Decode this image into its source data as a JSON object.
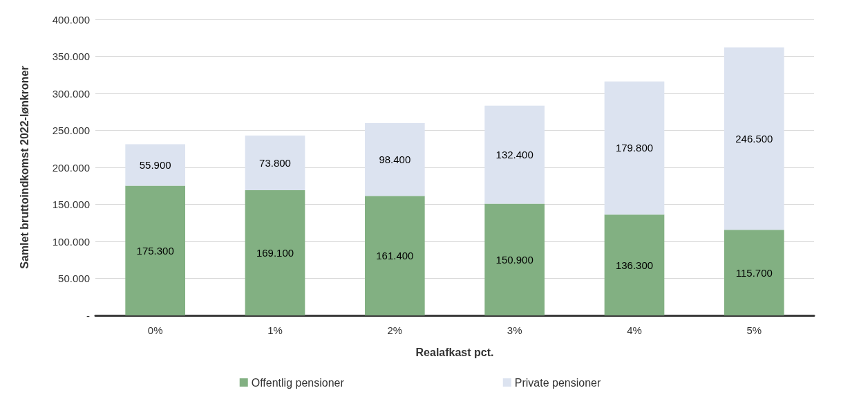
{
  "chart_data": {
    "type": "bar",
    "stacked": true,
    "xlabel": "Realafkast pct.",
    "ylabel": "Samlet bruttoindkomst 2022-lønkroner",
    "categories": [
      "0%",
      "1%",
      "2%",
      "3%",
      "4%",
      "5%"
    ],
    "series": [
      {
        "name": "Offentlig pensioner",
        "color": "#82b082",
        "values": [
          175300,
          169100,
          161400,
          150900,
          136300,
          115700
        ],
        "value_labels": [
          "175.300",
          "169.100",
          "161.400",
          "150.900",
          "136.300",
          "115.700"
        ]
      },
      {
        "name": "Private pensioner",
        "color": "#dce3f0",
        "values": [
          55900,
          73800,
          98400,
          132400,
          179800,
          246500
        ],
        "value_labels": [
          "55.900",
          "73.800",
          "98.400",
          "132.400",
          "179.800",
          "246.500"
        ]
      }
    ],
    "ylim": [
      0,
      400000
    ],
    "yticks": [
      {
        "value": 0,
        "label": "-"
      },
      {
        "value": 50000,
        "label": "50.000"
      },
      {
        "value": 100000,
        "label": "100.000"
      },
      {
        "value": 150000,
        "label": "150.000"
      },
      {
        "value": 200000,
        "label": "200.000"
      },
      {
        "value": 250000,
        "label": "250.000"
      },
      {
        "value": 300000,
        "label": "300.000"
      },
      {
        "value": 350000,
        "label": "350.000"
      },
      {
        "value": 400000,
        "label": "400.000"
      }
    ],
    "grid": "y",
    "legend": "bottom"
  }
}
